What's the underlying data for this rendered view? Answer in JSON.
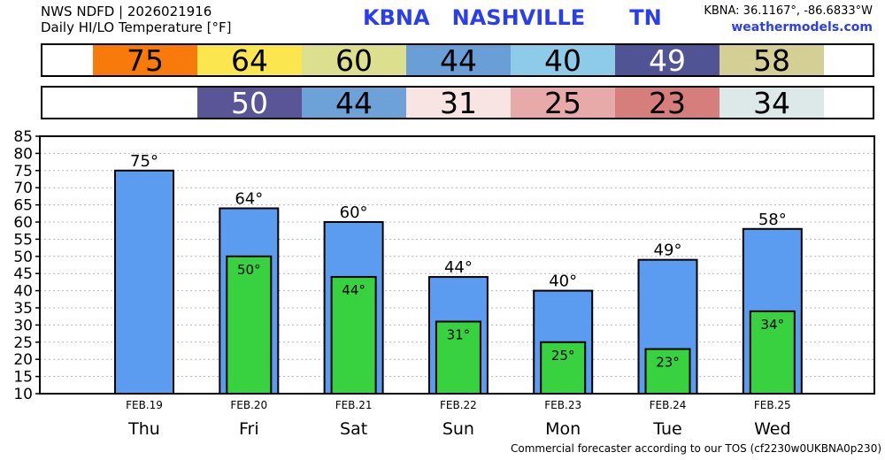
{
  "header": {
    "line1": "NWS NDFD | 2026021916",
    "line2": "Daily HI/LO Temperature [°F]",
    "station": "KBNA   NASHVILLE      TN",
    "coords": "KBNA: 36.1167°, -86.6833°W",
    "site": "weathermodels.com"
  },
  "hi_strip": [
    {
      "value": "75",
      "color": "#f77a0a",
      "text_color": "#000000"
    },
    {
      "value": "64",
      "color": "#fce650",
      "text_color": "#000000"
    },
    {
      "value": "60",
      "color": "#dcdf8d",
      "text_color": "#000000"
    },
    {
      "value": "44",
      "color": "#6a9ed6",
      "text_color": "#000000"
    },
    {
      "value": "40",
      "color": "#8ecbe8",
      "text_color": "#000000"
    },
    {
      "value": "49",
      "color": "#505494",
      "text_color": "#ffffff"
    },
    {
      "value": "58",
      "color": "#d4d095",
      "text_color": "#000000"
    }
  ],
  "lo_strip": [
    {
      "value": "50",
      "color": "#5a5596",
      "text_color": "#ffffff"
    },
    {
      "value": "44",
      "color": "#6da2d8",
      "text_color": "#000000"
    },
    {
      "value": "31",
      "color": "#f8e4e2",
      "text_color": "#000000"
    },
    {
      "value": "25",
      "color": "#e8aaa8",
      "text_color": "#000000"
    },
    {
      "value": "23",
      "color": "#d57e7c",
      "text_color": "#000000"
    },
    {
      "value": "34",
      "color": "#dce9e8",
      "text_color": "#000000"
    }
  ],
  "chart_data": {
    "type": "bar",
    "categories": [
      "FEB.19",
      "FEB.20",
      "FEB.21",
      "FEB.22",
      "FEB.23",
      "FEB.24",
      "FEB.25"
    ],
    "days": [
      "Thu",
      "Fri",
      "Sat",
      "Sun",
      "Mon",
      "Tue",
      "Wed"
    ],
    "series": [
      {
        "values": [
          75,
          64,
          60,
          44,
          40,
          49,
          58
        ],
        "color": "#5b9cf0"
      },
      {
        "values": [
          null,
          50,
          44,
          31,
          25,
          23,
          34
        ],
        "color": "#38d13f"
      }
    ],
    "hi_labels": [
      "75°",
      "64°",
      "60°",
      "44°",
      "40°",
      "49°",
      "58°"
    ],
    "lo_labels": [
      "",
      "50°",
      "44°",
      "31°",
      "25°",
      "23°",
      "34°"
    ],
    "yticks": [
      "85",
      "80",
      "75",
      "70",
      "65",
      "60",
      "55",
      "50",
      "45",
      "40",
      "35",
      "30",
      "25",
      "20",
      "15",
      "10"
    ],
    "ylim": [
      10,
      85
    ],
    "grid": true
  },
  "footer": "Commercial forecaster according to our TOS (cf2230w0UKBNA0p230)"
}
